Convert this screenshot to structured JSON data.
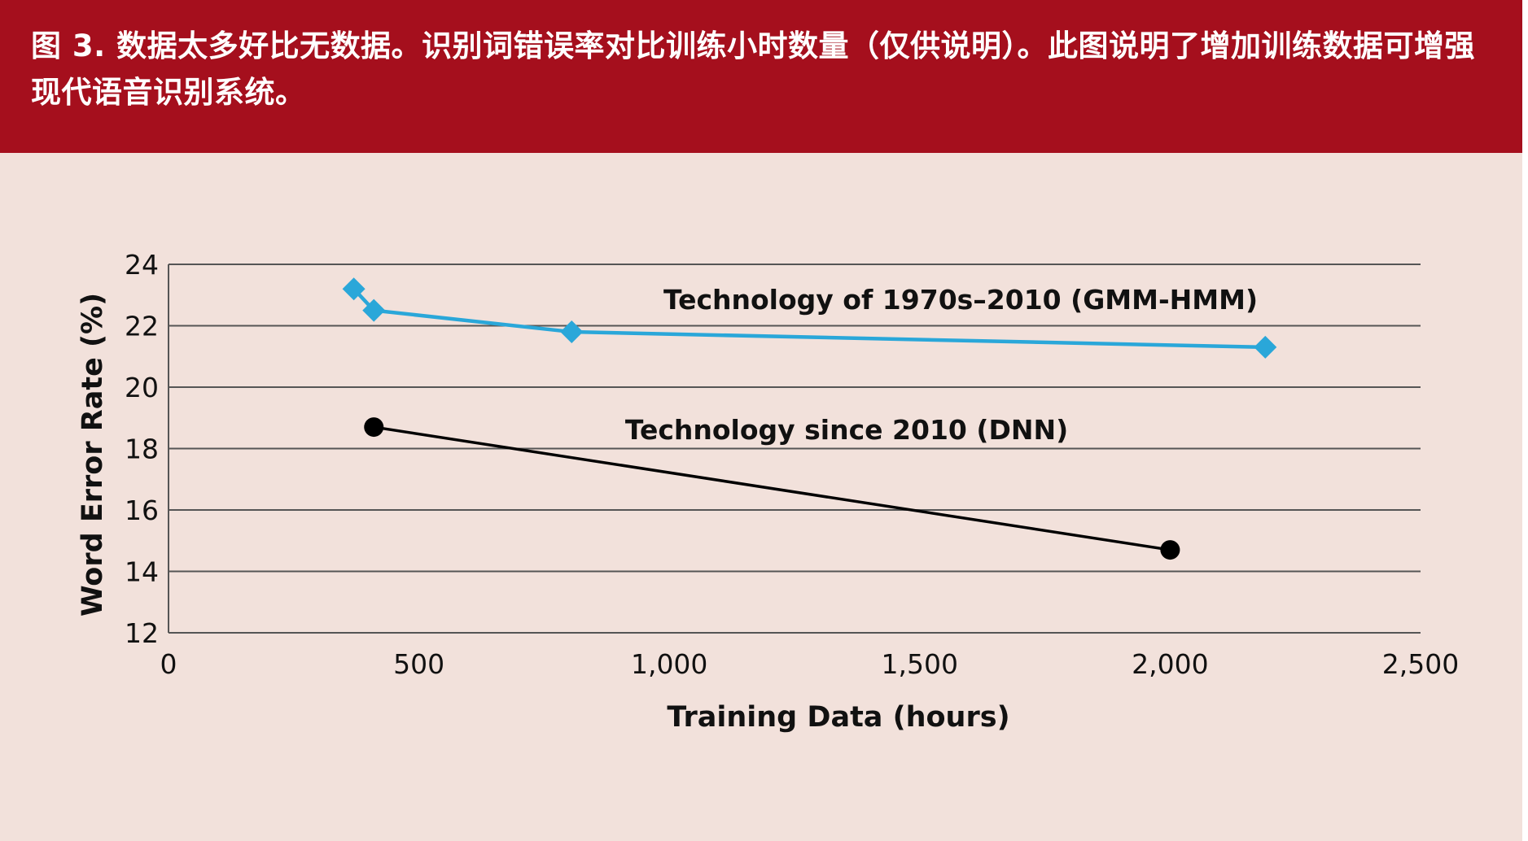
{
  "caption": "图 3. 数据太多好比无数据。识别词错误率对比训练小时数量（仅供说明）。此图说明了增加训练数据可增强现代语音识别系统。",
  "colors": {
    "header_bg": "#a50f1d",
    "panel_bg": "#f2e1db",
    "gmm_series": "#2aa7d9",
    "dnn_series": "#000000",
    "gridline": "#555555"
  },
  "chart_data": {
    "type": "line",
    "title": "",
    "xlabel": "Training Data (hours)",
    "ylabel": "Word Error Rate (%)",
    "xlim": [
      0,
      2500
    ],
    "ylim": [
      12,
      24
    ],
    "x_ticks": [
      0,
      500,
      1000,
      1500,
      2000,
      2500
    ],
    "x_tick_labels": [
      "0",
      "500",
      "1,000",
      "1,500",
      "2,000",
      "2,500"
    ],
    "y_ticks": [
      12,
      14,
      16,
      18,
      20,
      22,
      24
    ],
    "y_tick_labels": [
      "12",
      "14",
      "16",
      "18",
      "20",
      "22",
      "24"
    ],
    "grid": true,
    "series": [
      {
        "name": "Technology of 1970s–2010 (GMM-HMM)",
        "marker": "diamond",
        "color": "#2aa7d9",
        "x": [
          370,
          410,
          805,
          2190
        ],
        "y": [
          23.2,
          22.5,
          21.8,
          21.3
        ]
      },
      {
        "name": "Technology since 2010 (DNN)",
        "marker": "circle",
        "color": "#000000",
        "x": [
          410,
          2000
        ],
        "y": [
          18.7,
          14.7
        ]
      }
    ]
  }
}
